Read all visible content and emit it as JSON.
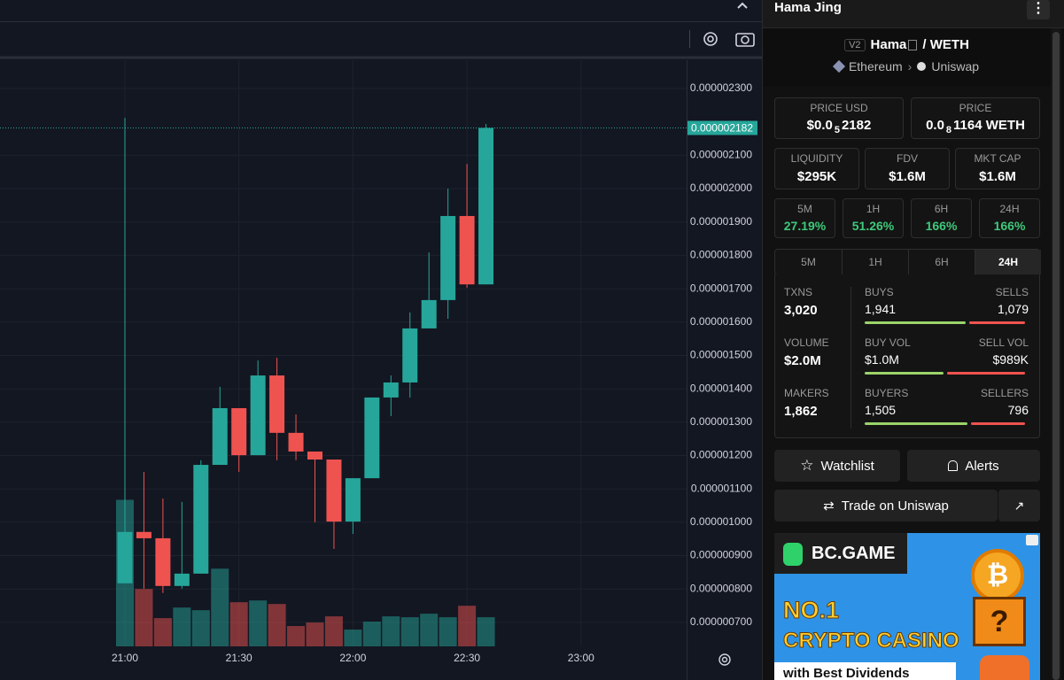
{
  "chart_data": {
    "type": "candlestick",
    "x": [
      "21:00",
      null,
      null,
      null,
      null,
      null,
      "21:30",
      null,
      null,
      null,
      null,
      null,
      "22:00",
      null,
      null,
      null,
      null,
      null,
      "22:30",
      null,
      null,
      null,
      null,
      null,
      "23:00"
    ],
    "open": [
      8.17e-07,
      9.71e-07,
      9.52e-07,
      8.09e-07,
      8.46e-07,
      1.172e-06,
      1.342e-06,
      1.201e-06,
      1.44e-06,
      1.268e-06,
      1.212e-06,
      1.188e-06,
      1.002e-06,
      1.132e-06,
      1.374e-06,
      1.419e-06,
      1.581e-06,
      1.666e-06,
      1.918e-06,
      1.713e-06,
      null,
      null,
      null,
      null,
      null
    ],
    "high": [
      2.212e-06,
      1.151e-06,
      1.071e-06,
      1.061e-06,
      1.186e-06,
      1.406e-06,
      1.342e-06,
      1.485e-06,
      1.493e-06,
      1.323e-06,
      1.212e-06,
      1.188e-06,
      1.132e-06,
      1.374e-06,
      1.44e-06,
      1.629e-06,
      1.809e-06,
      2e-06,
      2.074e-06,
      2.194e-06,
      null,
      null,
      null,
      null,
      null
    ],
    "low": [
      8.17e-07,
      8.01e-07,
      7.88e-07,
      8.01e-07,
      8.46e-07,
      1.172e-06,
      1.151e-06,
      1.201e-06,
      1.186e-06,
      1.186e-06,
      1e-06,
      9.2e-07,
      9.65e-07,
      1.132e-06,
      1.318e-06,
      1.374e-06,
      1.581e-06,
      1.61e-06,
      1.703e-06,
      1.713e-06,
      null,
      null,
      null,
      null,
      null
    ],
    "close": [
      9.71e-07,
      9.52e-07,
      8.09e-07,
      8.46e-07,
      1.172e-06,
      1.342e-06,
      1.201e-06,
      1.44e-06,
      1.268e-06,
      1.212e-06,
      1.188e-06,
      1.002e-06,
      1.132e-06,
      1.374e-06,
      1.419e-06,
      1.581e-06,
      1.666e-06,
      1.918e-06,
      1.713e-06,
      2.182e-06,
      null,
      null,
      null,
      null,
      null
    ],
    "volume": [
      166,
      65,
      32,
      44,
      41,
      88,
      50,
      52,
      48,
      23,
      27,
      34,
      19,
      28,
      34,
      33,
      37,
      33,
      46,
      33,
      null,
      null,
      null,
      null,
      null
    ],
    "up_color": "#26a69a",
    "down_color": "#ef5350",
    "ylim": [
      6.28e-07,
      2.385e-06
    ],
    "yticks": [
      {
        "value": 7e-07,
        "label": "0.000000700"
      },
      {
        "value": 8e-07,
        "label": "0.000000800"
      },
      {
        "value": 9e-07,
        "label": "0.000000900"
      },
      {
        "value": 1e-06,
        "label": "0.000001000"
      },
      {
        "value": 1.1e-06,
        "label": "0.000001100"
      },
      {
        "value": 1.2e-06,
        "label": "0.000001200"
      },
      {
        "value": 1.3e-06,
        "label": "0.000001300"
      },
      {
        "value": 1.4e-06,
        "label": "0.000001400"
      },
      {
        "value": 1.5e-06,
        "label": "0.000001500"
      },
      {
        "value": 1.6e-06,
        "label": "0.000001600"
      },
      {
        "value": 1.7e-06,
        "label": "0.000001700"
      },
      {
        "value": 1.8e-06,
        "label": "0.000001800"
      },
      {
        "value": 1.9e-06,
        "label": "0.000001900"
      },
      {
        "value": 2e-06,
        "label": "0.000002000"
      },
      {
        "value": 2.1e-06,
        "label": "0.000002100"
      },
      {
        "value": 2.3e-06,
        "label": "0.000002300"
      }
    ],
    "last_price": {
      "value": 2.182e-06,
      "label": "0.000002182"
    },
    "grid": true
  },
  "panel": {
    "title": "Hama Jing",
    "pair": {
      "version": "V2",
      "base": "Hama",
      "quote": "/ WETH",
      "chain": "Ethereum",
      "dex": "Uniswap"
    },
    "price_usd": {
      "label": "PRICE USD",
      "lead": "$0.0",
      "zeros": "5",
      "digits": "2182"
    },
    "price_native": {
      "label": "PRICE",
      "lead": "0.0",
      "zeros": "8",
      "digits": "1164 WETH"
    },
    "stats": [
      {
        "label": "LIQUIDITY",
        "value": "$295K"
      },
      {
        "label": "FDV",
        "value": "$1.6M"
      },
      {
        "label": "MKT CAP",
        "value": "$1.6M"
      }
    ],
    "changes": [
      {
        "label": "5M",
        "value": "27.19%"
      },
      {
        "label": "1H",
        "value": "51.26%"
      },
      {
        "label": "6H",
        "value": "166%"
      },
      {
        "label": "24H",
        "value": "166%"
      }
    ],
    "tabs": [
      "5M",
      "1H",
      "6H",
      "24H"
    ],
    "active_tab": 3,
    "txn_rows": [
      {
        "label": "TXNS",
        "total": "3,020",
        "left_label": "BUYS",
        "left": {
          "value": 1941,
          "label": "1,941"
        },
        "right_label": "SELLS",
        "right": {
          "value": 1079,
          "label": "1,079"
        }
      },
      {
        "label": "VOLUME",
        "total": "$2.0M",
        "left_label": "BUY VOL",
        "left": {
          "value": 1000000,
          "label": "$1.0M"
        },
        "right_label": "SELL VOL",
        "right": {
          "value": 989000,
          "label": "$989K"
        }
      },
      {
        "label": "MAKERS",
        "total": "1,862",
        "left_label": "BUYERS",
        "left": {
          "value": 1505,
          "label": "1,505"
        },
        "right_label": "SELLERS",
        "right": {
          "value": 796,
          "label": "796"
        }
      }
    ],
    "buttons": {
      "watchlist": "Watchlist",
      "alerts": "Alerts",
      "trade": "Trade on Uniswap"
    },
    "ad": {
      "brand": "BC.GAME",
      "line1": "NO.1",
      "line2": "CRYPTO CASINO",
      "line3": "with Best Dividends"
    }
  }
}
